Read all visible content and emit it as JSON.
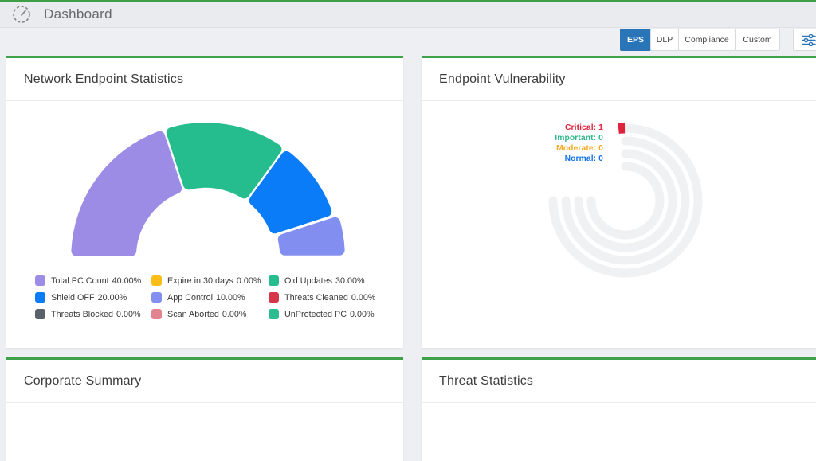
{
  "header": {
    "title": "Dashboard"
  },
  "toolbar": {
    "buttons": [
      {
        "label": "EPS",
        "active": true
      },
      {
        "label": "DLP",
        "active": false
      },
      {
        "label": "Compliance",
        "active": false
      },
      {
        "label": "Custom",
        "active": false
      }
    ],
    "active_color": "#2a74b8"
  },
  "cards": {
    "network_endpoint_statistics": {
      "title": "Network Endpoint Statistics",
      "chart_data": {
        "type": "pie",
        "subtype": "half-donut-gauge",
        "unit": "%",
        "legend_position": "bottom",
        "items": [
          {
            "label": "Total PC Count",
            "value": 40.0,
            "display": "40.00%",
            "color": "#9c8ce6"
          },
          {
            "label": "Expire in 30 days",
            "value": 0.0,
            "display": "0.00%",
            "color": "#fbbe18"
          },
          {
            "label": "Old Updates",
            "value": 30.0,
            "display": "30.00%",
            "color": "#25bd8e"
          },
          {
            "label": "Shield OFF",
            "value": 20.0,
            "display": "20.00%",
            "color": "#0a7cf8"
          },
          {
            "label": "App Control",
            "value": 10.0,
            "display": "10.00%",
            "color": "#828ff0"
          },
          {
            "label": "Threats Cleaned",
            "value": 0.0,
            "display": "0.00%",
            "color": "#d63649"
          },
          {
            "label": "Threats Blocked",
            "value": 0.0,
            "display": "0.00%",
            "color": "#5b616b"
          },
          {
            "label": "Scan Aborted",
            "value": 0.0,
            "display": "0.00%",
            "color": "#e2838f"
          },
          {
            "label": "UnProtected PC",
            "value": 0.0,
            "display": "0.00%",
            "color": "#2bbc90"
          }
        ]
      }
    },
    "endpoint_vulnerability": {
      "title": "Endpoint Vulnerability",
      "chart_data": {
        "type": "radial-bar",
        "track_color": "#f0f1f2",
        "items": [
          {
            "label": "Critical",
            "value": 1,
            "color": "#e0233c"
          },
          {
            "label": "Important",
            "value": 0,
            "color": "#2eb98b"
          },
          {
            "label": "Moderate",
            "value": 0,
            "color": "#f6a81f"
          },
          {
            "label": "Normal",
            "value": 0,
            "color": "#1273e6"
          }
        ]
      }
    },
    "corporate_summary": {
      "title": "Corporate Summary"
    },
    "threat_statistics": {
      "title": "Threat Statistics"
    }
  }
}
